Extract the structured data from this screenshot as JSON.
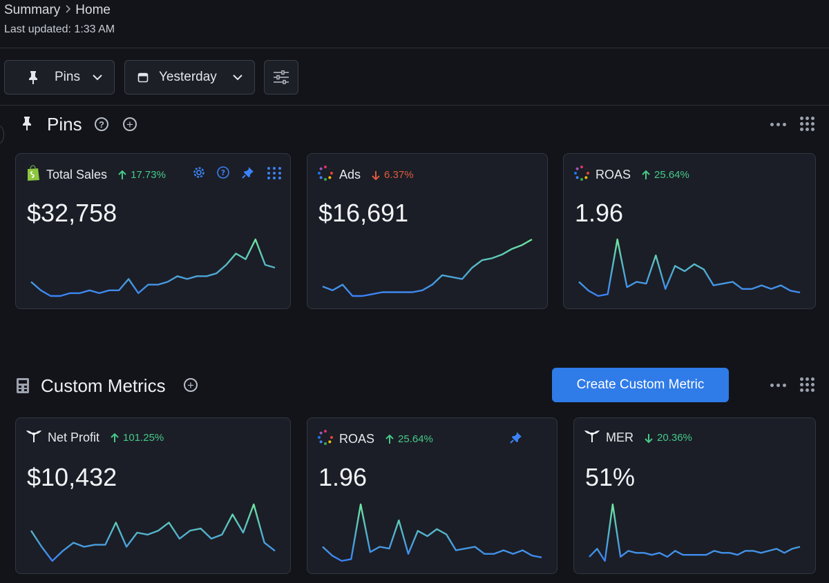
{
  "breadcrumb": {
    "parent": "Summary",
    "current": "Home"
  },
  "last_updated": "Last updated: 1:33 AM",
  "toolbar": {
    "pins_label": "Pins",
    "date_label": "Yesterday"
  },
  "pins_section": {
    "title": "Pins"
  },
  "custom_section": {
    "title": "Custom Metrics",
    "create_label": "Create Custom Metric"
  },
  "colors": {
    "up": "#46c98a",
    "down": "#e05a3f",
    "accent": "#2f7be8",
    "spark_start": "#3b82f6",
    "spark_end": "#6ee7a0"
  },
  "pinned_cards": [
    {
      "title": "Total Sales",
      "delta": "17.73%",
      "direction": "up",
      "value": "$32,758",
      "icon": "shopify-bag-icon",
      "spark": [
        12,
        9,
        7,
        7,
        8,
        8,
        9,
        8,
        9,
        9,
        13,
        8,
        11,
        11,
        12,
        14,
        13,
        14,
        14,
        15,
        18,
        22,
        20,
        27,
        18,
        17
      ]
    },
    {
      "title": "Ads",
      "delta": "6.37%",
      "direction": "down",
      "value": "$16,691",
      "icon": "ads-dots-icon",
      "spark": [
        5,
        3,
        6,
        0,
        0,
        1,
        2,
        2,
        2,
        2,
        3,
        6,
        11,
        10,
        9,
        15,
        19,
        20,
        22,
        25,
        27,
        30
      ]
    },
    {
      "title": "ROAS",
      "delta": "25.64%",
      "direction": "up",
      "value": "1.96",
      "icon": "ads-dots-icon",
      "spark": [
        9,
        4,
        1,
        2,
        33,
        6,
        9,
        8,
        24,
        5,
        18,
        15,
        19,
        16,
        7,
        8,
        9,
        5,
        5,
        7,
        5,
        7,
        4,
        3
      ]
    }
  ],
  "custom_cards": [
    {
      "title": "Net Profit",
      "delta": "101.25%",
      "direction": "up",
      "value": "$10,432",
      "icon": "triple-whale-icon",
      "spark": [
        18,
        10,
        3,
        8,
        12,
        10,
        11,
        11,
        22,
        10,
        17,
        16,
        18,
        22,
        14,
        18,
        19,
        14,
        16,
        26,
        17,
        31,
        12,
        8
      ]
    },
    {
      "title": "ROAS",
      "delta": "25.64%",
      "direction": "up",
      "value": "1.96",
      "icon": "ads-dots-icon",
      "spark": [
        9,
        4,
        1,
        2,
        33,
        6,
        9,
        8,
        24,
        5,
        18,
        15,
        19,
        16,
        7,
        8,
        9,
        5,
        5,
        7,
        5,
        7,
        4,
        3
      ]
    },
    {
      "title": "MER",
      "delta": "20.36%",
      "direction": "down",
      "value": "51%",
      "icon": "triple-whale-icon",
      "spark": [
        4,
        8,
        2,
        30,
        4,
        7,
        6,
        6,
        5,
        6,
        4,
        7,
        5,
        5,
        5,
        5,
        7,
        6,
        6,
        5,
        7,
        7,
        6,
        7,
        8,
        6,
        8,
        9
      ]
    }
  ]
}
